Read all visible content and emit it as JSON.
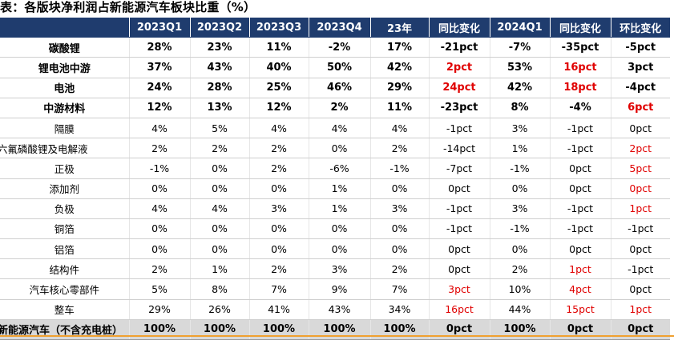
{
  "title": "表：各版块净利润占新能源汽车板块比重（%）",
  "columns": [
    "",
    "2023Q1",
    "2023Q2",
    "2023Q3",
    "2023Q4",
    "23年",
    "同比变化",
    "2024Q1",
    "同比变化",
    "环比变化"
  ],
  "rows": [
    {
      "label": "碳酸锂",
      "values": [
        "28%",
        "23%",
        "11%",
        "-2%",
        "17%",
        "-21pct",
        "-7%",
        "-35pct",
        "-5pct"
      ],
      "bold": true,
      "red": []
    },
    {
      "label": "锂电池中游",
      "values": [
        "37%",
        "43%",
        "40%",
        "50%",
        "42%",
        "2pct",
        "53%",
        "16pct",
        "3pct"
      ],
      "bold": true,
      "red": [
        5,
        7
      ]
    },
    {
      "label": "电池",
      "values": [
        "24%",
        "28%",
        "25%",
        "46%",
        "29%",
        "24pct",
        "42%",
        "18pct",
        "-4pct"
      ],
      "bold": true,
      "red": [
        5,
        7
      ]
    },
    {
      "label": "中游材料",
      "values": [
        "12%",
        "13%",
        "12%",
        "2%",
        "11%",
        "-23pct",
        "8%",
        "-4%",
        "6pct"
      ],
      "bold": true,
      "red": [
        8
      ]
    },
    {
      "label": "隔膜",
      "values": [
        "4%",
        "5%",
        "4%",
        "4%",
        "4%",
        "-1pct",
        "3%",
        "-1pct",
        "0pct"
      ],
      "bold": false,
      "red": []
    },
    {
      "label": "六氟磷酸锂及电解液",
      "values": [
        "2%",
        "2%",
        "2%",
        "0%",
        "2%",
        "-14pct",
        "1%",
        "-1pct",
        "2pct"
      ],
      "bold": false,
      "red": [
        8
      ]
    },
    {
      "label": "正极",
      "values": [
        "-1%",
        "0%",
        "2%",
        "-6%",
        "-1%",
        "-7pct",
        "-1%",
        "0pct",
        "5pct"
      ],
      "bold": false,
      "red": [
        8
      ]
    },
    {
      "label": "添加剂",
      "values": [
        "0%",
        "0%",
        "0%",
        "1%",
        "0%",
        "0pct",
        "0%",
        "0pct",
        "0pct"
      ],
      "bold": false,
      "red": [
        8
      ]
    },
    {
      "label": "负极",
      "values": [
        "4%",
        "4%",
        "3%",
        "1%",
        "3%",
        "-1pct",
        "3%",
        "-1pct",
        "1pct"
      ],
      "bold": false,
      "red": [
        8
      ]
    },
    {
      "label": "铜箔",
      "values": [
        "0%",
        "0%",
        "0%",
        "0%",
        "0%",
        "-1pct",
        "-1%",
        "-1pct",
        "-1pct"
      ],
      "bold": false,
      "red": []
    },
    {
      "label": "铝箔",
      "values": [
        "0%",
        "0%",
        "0%",
        "0%",
        "0%",
        "0pct",
        "0%",
        "0pct",
        "0pct"
      ],
      "bold": false,
      "red": []
    },
    {
      "label": "结构件",
      "values": [
        "2%",
        "1%",
        "2%",
        "3%",
        "2%",
        "0pct",
        "2%",
        "1pct",
        "-1pct"
      ],
      "bold": false,
      "red": [
        7
      ]
    },
    {
      "label": "汽车核心零部件",
      "values": [
        "5%",
        "8%",
        "7%",
        "9%",
        "7%",
        "3pct",
        "10%",
        "4pct",
        "0pct"
      ],
      "bold": false,
      "red": [
        5,
        7
      ]
    },
    {
      "label": "整车",
      "values": [
        "29%",
        "26%",
        "41%",
        "43%",
        "34%",
        "16pct",
        "44%",
        "15pct",
        "1pct"
      ],
      "bold": false,
      "red": [
        5,
        7,
        8
      ]
    },
    {
      "label": "新能源汽车（不含充电桩）",
      "values": [
        "100%",
        "100%",
        "100%",
        "100%",
        "100%",
        "0pct",
        "100%",
        "0pct",
        "0pct"
      ],
      "bold": true,
      "total": true,
      "red": []
    }
  ],
  "colors": {
    "header_bg": "#1f3c6e",
    "header_text": "#ffffff",
    "highlight": "#e00000",
    "total_bg": "#d9d9d9",
    "accent_line": "#f0a030"
  }
}
